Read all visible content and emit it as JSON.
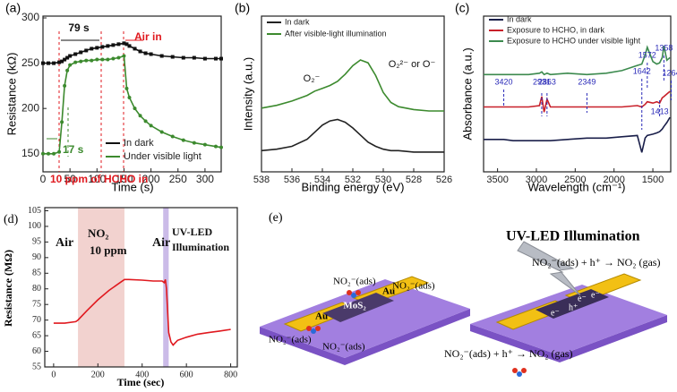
{
  "chart_data": [
    {
      "type": "line",
      "label": "(a)",
      "xlabel": "Time (s)",
      "ylabel": "Resistance (kΩ)",
      "xlim": [
        0,
        330
      ],
      "xticks": [
        0,
        50,
        100,
        150,
        200,
        250,
        300
      ],
      "ylim": [
        130,
        302
      ],
      "yticks": [
        150,
        200,
        250,
        300
      ],
      "markers": true,
      "x": [
        0,
        10,
        20,
        30,
        35,
        40,
        45,
        50,
        60,
        70,
        80,
        90,
        100,
        110,
        120,
        130,
        140,
        150,
        155,
        160,
        170,
        180,
        190,
        200,
        220,
        240,
        260,
        280,
        300,
        320,
        330
      ],
      "series": [
        {
          "name": "In dark",
          "color": "#111111",
          "values": [
            250,
            250,
            250,
            251,
            252,
            254,
            256,
            258,
            260,
            262,
            264,
            266,
            267,
            268,
            269,
            270,
            271,
            272,
            271,
            269,
            266,
            263,
            261,
            260,
            258,
            257,
            256,
            256,
            255,
            255,
            255
          ]
        },
        {
          "name": "Under visible light",
          "color": "#3c8a2e",
          "values": [
            150,
            150,
            150,
            152,
            185,
            225,
            242,
            248,
            251,
            252,
            253,
            253,
            254,
            254,
            254,
            255,
            256,
            258,
            222,
            212,
            200,
            192,
            186,
            181,
            174,
            169,
            165,
            162,
            160,
            158,
            157
          ]
        }
      ],
      "annotations": [
        "79 s",
        "Air in",
        "17 s",
        "10 ppm of HCHO in"
      ]
    },
    {
      "type": "line",
      "label": "(b)",
      "xlabel": "Binding energy (eV)",
      "ylabel": "Intensity (a.u.)",
      "xlim": [
        538,
        526
      ],
      "xticks": [
        538,
        536,
        534,
        532,
        530,
        528,
        526
      ],
      "ylim": [
        0,
        11
      ],
      "x": [
        538,
        537,
        536,
        535,
        534.5,
        534,
        533.5,
        533,
        532.5,
        532,
        531.5,
        531,
        530.5,
        530,
        529.5,
        529,
        528,
        527,
        526
      ],
      "series": [
        {
          "name": "In dark",
          "color": "#222222",
          "values": [
            1.5,
            1.6,
            1.8,
            2.3,
            2.8,
            3.3,
            3.6,
            3.7,
            3.5,
            3.1,
            2.6,
            2.1,
            1.8,
            1.6,
            1.5,
            1.5,
            1.4,
            1.4,
            1.4
          ]
        },
        {
          "name": "After visible-light illumination",
          "color": "#3c8a2e",
          "values": [
            4.5,
            4.7,
            5.0,
            5.4,
            5.7,
            5.9,
            6.1,
            6.4,
            6.9,
            7.5,
            7.9,
            7.7,
            6.8,
            5.6,
            4.9,
            4.6,
            4.4,
            4.3,
            4.3
          ]
        }
      ],
      "annotations": [
        "O₂⁻",
        "O₂²⁻ or O⁻"
      ]
    },
    {
      "type": "line",
      "label": "(c)",
      "xlabel": "Wavelength (cm⁻¹)",
      "ylabel": "Absorbance (a.u.)",
      "xlim": [
        3680,
        1270
      ],
      "xticks": [
        3500,
        3000,
        2500,
        2000,
        1500
      ],
      "ylim": [
        0,
        12
      ],
      "x": [
        3680,
        3500,
        3420,
        3300,
        3100,
        2960,
        2931,
        2900,
        2863,
        2820,
        2600,
        2349,
        2100,
        1900,
        1700,
        1642,
        1600,
        1572,
        1500,
        1450,
        1413,
        1380,
        1358,
        1320,
        1280
      ],
      "series": [
        {
          "name": "In dark",
          "color": "#1a1f4a",
          "values": [
            2.5,
            2.5,
            2.5,
            2.4,
            2.4,
            2.4,
            2.4,
            2.4,
            2.4,
            2.4,
            2.5,
            2.6,
            2.6,
            2.7,
            2.8,
            1.5,
            2.6,
            2.8,
            2.9,
            3.0,
            3.1,
            3.3,
            3.5,
            3.8,
            4.2
          ]
        },
        {
          "name": "Exposure to HCHO, in dark",
          "color": "#c8202a",
          "values": [
            5.0,
            5.0,
            5.0,
            5.0,
            5.0,
            5.1,
            5.8,
            4.6,
            5.6,
            5.0,
            5.0,
            5.0,
            5.0,
            5.0,
            5.1,
            5.0,
            5.2,
            5.4,
            5.3,
            5.4,
            5.3,
            5.7,
            5.8,
            6.0,
            6.2
          ]
        },
        {
          "name": "Exposure to HCHO under visible light",
          "color": "#3c8a4e",
          "values": [
            7.5,
            7.5,
            7.5,
            7.5,
            7.5,
            7.6,
            7.7,
            7.5,
            7.6,
            7.5,
            7.6,
            7.5,
            7.6,
            7.8,
            8.2,
            8.3,
            9.0,
            9.6,
            8.5,
            8.3,
            8.4,
            8.8,
            9.7,
            8.6,
            8.8
          ]
        }
      ],
      "peaks": [
        3420,
        2931,
        2863,
        2349,
        1642,
        1572,
        1358,
        1264,
        1413
      ]
    },
    {
      "type": "line",
      "label": "(d)",
      "xlabel": "Time (sec)",
      "ylabel": "Resistance (MΩ)",
      "xlim": [
        -40,
        830
      ],
      "xticks": [
        0,
        200,
        400,
        600,
        800
      ],
      "ylim": [
        55,
        106
      ],
      "yticks": [
        55,
        60,
        65,
        70,
        75,
        80,
        85,
        90,
        95,
        100,
        105
      ],
      "bands": [
        {
          "from": 110,
          "to": 320,
          "color": "#f2d2cf"
        },
        {
          "from": 495,
          "to": 520,
          "color": "#cbbbe8"
        }
      ],
      "x": [
        0,
        50,
        100,
        110,
        150,
        200,
        250,
        300,
        320,
        340,
        400,
        450,
        490,
        500,
        505,
        510,
        520,
        530,
        540,
        560,
        600,
        650,
        700,
        750,
        800
      ],
      "series": [
        {
          "name": "Resistance",
          "color": "#e0191f",
          "values": [
            69,
            69,
            69.5,
            70,
            73,
            76.5,
            79.5,
            82,
            83,
            83,
            82.8,
            82.5,
            82.5,
            82,
            83,
            80,
            66,
            63,
            62,
            63.5,
            64.5,
            65.5,
            66,
            66.5,
            67
          ]
        }
      ],
      "annotations": [
        "Air",
        "NO₂",
        "10 ppm",
        "Air",
        "UV-LED",
        "Illumination"
      ]
    }
  ],
  "diagram": {
    "label": "(e)",
    "title": "UV-LED Illumination",
    "electrodes": [
      "Au",
      "Au"
    ],
    "channel": "MoS₂",
    "adsorbates": [
      "NO₂⁻(ads)",
      "NO₂⁻(ads)",
      "NO₂⁻(ads)",
      "NO₂⁻(ads)"
    ],
    "reaction": "NO₂⁻(ads) + h⁺ → NO₂ (gas)",
    "carriers": [
      "e⁻",
      "e⁻",
      "h⁺",
      "e⁻"
    ],
    "bottom_reaction": "NO₂⁻(ads) + h⁺ → NO₂ (gas)"
  }
}
